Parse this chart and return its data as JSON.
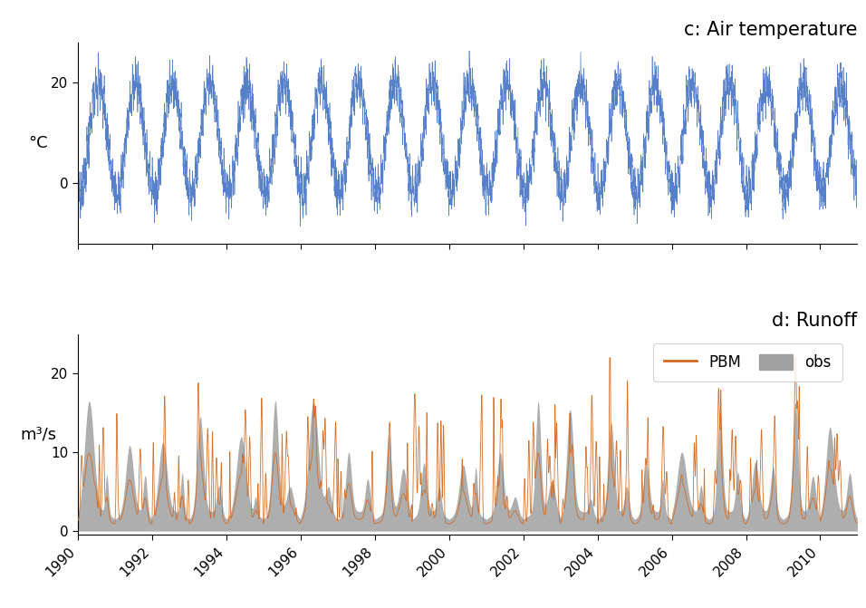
{
  "title_temp": "c: Air temperature",
  "title_runoff": "d: Runoff",
  "ylabel_temp": "°C",
  "ylabel_runoff": "m³/s",
  "temp_color": "#4472C4",
  "pbm_color": "#D2691E",
  "obs_color": "#A0A0A0",
  "temp_ylim": [
    -12,
    28
  ],
  "temp_yticks": [
    0,
    20
  ],
  "runoff_ylim": [
    -0.5,
    25
  ],
  "runoff_yticks": [
    0,
    10,
    20
  ],
  "year_start": 1990,
  "year_end": 2011,
  "title_fontsize": 15,
  "label_fontsize": 13,
  "tick_fontsize": 11,
  "background": "#ffffff",
  "legend_fontsize": 12
}
